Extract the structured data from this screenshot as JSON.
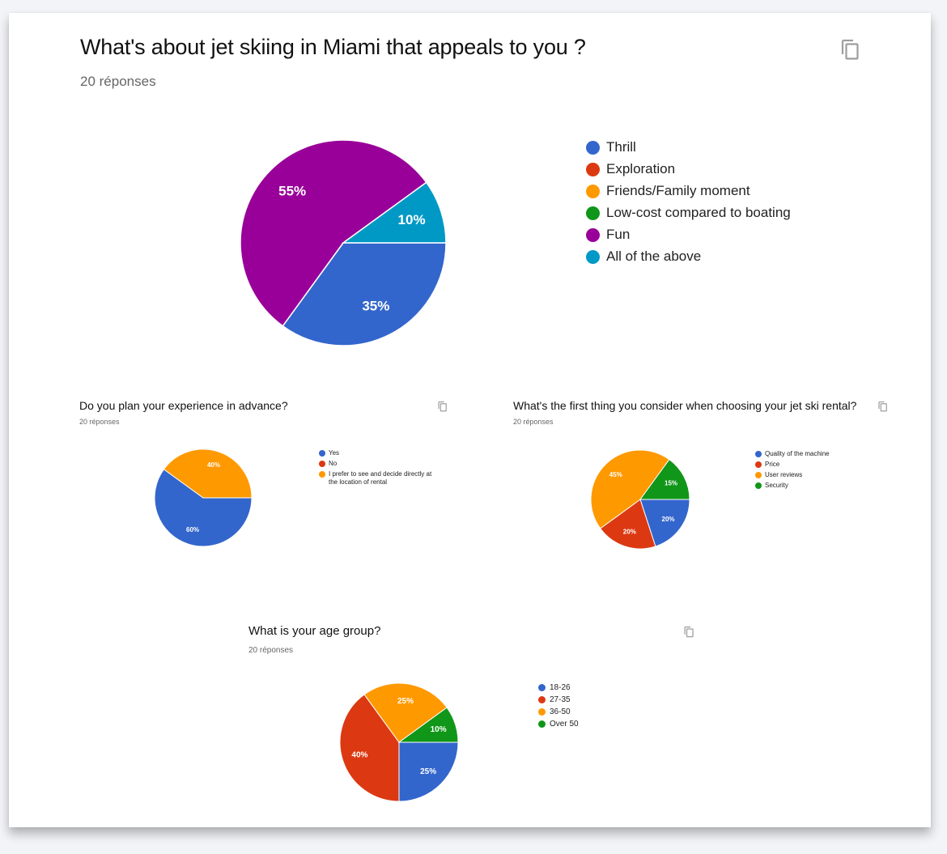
{
  "colors": {
    "blue": "#3366cc",
    "red": "#dc3912",
    "orange": "#ff9900",
    "green": "#109618",
    "purple": "#990099",
    "teal": "#0099c6"
  },
  "main": {
    "title": "What's about jet skiing in Miami that appeals to you ?",
    "responses": "20 réponses",
    "legend": [
      {
        "label": "Thrill",
        "color": "#3366cc"
      },
      {
        "label": "Exploration",
        "color": "#dc3912"
      },
      {
        "label": "Friends/Family moment",
        "color": "#ff9900"
      },
      {
        "label": "Low-cost compared to boating",
        "color": "#109618"
      },
      {
        "label": "Fun",
        "color": "#990099"
      },
      {
        "label": "All of the above",
        "color": "#0099c6"
      }
    ]
  },
  "plan": {
    "title": "Do you plan your experience in advance?",
    "responses": "20 réponses",
    "legend": [
      {
        "label": "Yes",
        "color": "#3366cc"
      },
      {
        "label": "No",
        "color": "#dc3912"
      },
      {
        "label": "I prefer to see and decide directly at the location of rental",
        "color": "#ff9900"
      }
    ]
  },
  "rental": {
    "title": "What's the first thing you consider when choosing your jet ski rental?",
    "responses": "20 réponses",
    "legend": [
      {
        "label": "Quality of the machine",
        "color": "#3366cc"
      },
      {
        "label": "Price",
        "color": "#dc3912"
      },
      {
        "label": "User reviews",
        "color": "#ff9900"
      },
      {
        "label": "Security",
        "color": "#109618"
      }
    ]
  },
  "age": {
    "title": "What is your age group?",
    "responses": "20 réponses",
    "legend": [
      {
        "label": "18-26",
        "color": "#3366cc"
      },
      {
        "label": "27-35",
        "color": "#dc3912"
      },
      {
        "label": "36-50",
        "color": "#ff9900"
      },
      {
        "label": "Over 50",
        "color": "#109618"
      }
    ]
  },
  "chart_data": [
    {
      "type": "pie",
      "title": "What's about jet skiing in Miami that appeals to you ?",
      "subtitle": "20 réponses",
      "categories": [
        "Thrill",
        "Exploration",
        "Friends/Family moment",
        "Low-cost compared to boating",
        "Fun",
        "All of the above"
      ],
      "values": [
        35,
        0,
        0,
        0,
        55,
        10
      ],
      "labels": [
        "35%",
        "",
        "",
        "",
        "55%",
        "10%"
      ],
      "colors": [
        "#3366cc",
        "#dc3912",
        "#ff9900",
        "#109618",
        "#990099",
        "#0099c6"
      ],
      "legend_position": "right"
    },
    {
      "type": "pie",
      "title": "Do you plan your experience in advance?",
      "subtitle": "20 réponses",
      "categories": [
        "Yes",
        "No",
        "I prefer to see and decide directly at the location of rental"
      ],
      "values": [
        60,
        0,
        40
      ],
      "labels": [
        "60%",
        "",
        "40%"
      ],
      "colors": [
        "#3366cc",
        "#dc3912",
        "#ff9900"
      ],
      "legend_position": "right"
    },
    {
      "type": "pie",
      "title": "What's the first thing you consider when choosing your jet ski rental?",
      "subtitle": "20 réponses",
      "categories": [
        "Quality of the machine",
        "Price",
        "User reviews",
        "Security"
      ],
      "values": [
        20,
        20,
        45,
        15
      ],
      "labels": [
        "20%",
        "20%",
        "45%",
        "15%"
      ],
      "colors": [
        "#3366cc",
        "#dc3912",
        "#ff9900",
        "#109618"
      ],
      "legend_position": "right"
    },
    {
      "type": "pie",
      "title": "What is your age group?",
      "subtitle": "20 réponses",
      "categories": [
        "18-26",
        "27-35",
        "36-50",
        "Over 50"
      ],
      "values": [
        25,
        40,
        25,
        10
      ],
      "labels": [
        "25%",
        "40%",
        "25%",
        "10%"
      ],
      "colors": [
        "#3366cc",
        "#dc3912",
        "#ff9900",
        "#109618"
      ],
      "legend_position": "right"
    }
  ]
}
